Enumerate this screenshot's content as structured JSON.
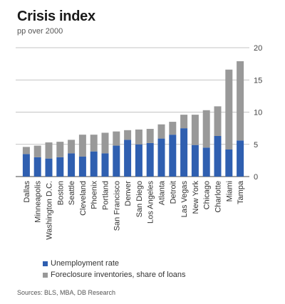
{
  "chart_data": {
    "type": "bar",
    "stacked": true,
    "title": "Crisis index",
    "subtitle": "pp over 2000",
    "categories": [
      "Dallas",
      "Minneapolis",
      "Washington D.C.",
      "Boston",
      "Seattle",
      "Cleveland",
      "Phoenix",
      "Portland",
      "San Francisco",
      "Denver",
      "San Diego",
      "Los Angeles",
      "Atlanta",
      "Detroit",
      "Las Vegas",
      "New York",
      "Chicago",
      "Charlotte",
      "Miami",
      "Tampa"
    ],
    "series": [
      {
        "name": "Unemployment rate",
        "color": "#2f5fb0",
        "values": [
          3.5,
          3.0,
          2.8,
          3.0,
          3.6,
          3.1,
          3.9,
          3.6,
          4.8,
          5.7,
          5.0,
          5.2,
          5.9,
          6.5,
          7.5,
          4.9,
          4.5,
          6.3,
          4.2,
          5.6
        ]
      },
      {
        "name": "Foreclosure inventories, share of loans",
        "color": "#999999",
        "values": [
          1.1,
          1.8,
          2.5,
          2.4,
          2.1,
          3.4,
          2.6,
          3.2,
          2.2,
          1.5,
          2.3,
          2.2,
          2.2,
          2.0,
          2.1,
          4.7,
          5.8,
          4.6,
          12.4,
          12.3
        ]
      }
    ],
    "y_ticks": [
      "0",
      "5",
      "10",
      "15",
      "20"
    ],
    "ylim": [
      0,
      20
    ],
    "y_axis_side": "right",
    "grid": true,
    "legend_position": "bottom-left"
  },
  "source": "Sources: BLS, MBA, DB Research"
}
